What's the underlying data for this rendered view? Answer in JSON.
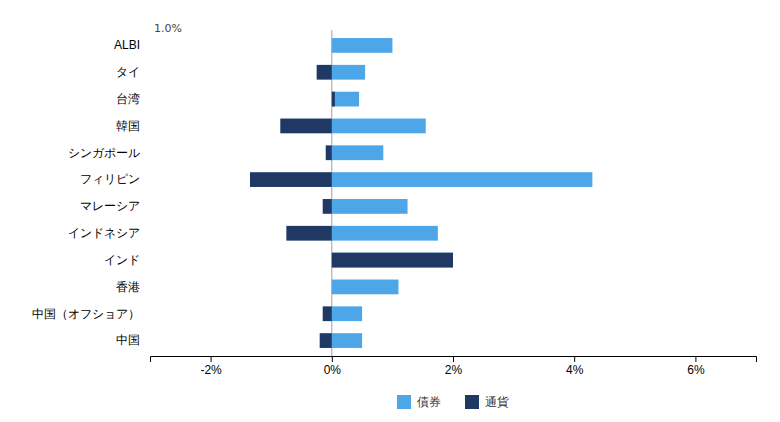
{
  "chart_data": {
    "type": "bar",
    "orientation": "horizontal",
    "stacked": false,
    "categories": [
      "ALBI",
      "タイ",
      "台湾",
      "韓国",
      "シンガポール",
      "フィリピン",
      "マレーシア",
      "インドネシア",
      "インド",
      "香港",
      "中国（オフショア）",
      "中国"
    ],
    "series": [
      {
        "name": "債券",
        "color": "#4da6e8",
        "values": [
          1.0,
          0.55,
          0.45,
          1.55,
          0.85,
          4.3,
          1.25,
          1.75,
          2.0,
          1.1,
          0.5,
          0.5
        ]
      },
      {
        "name": "通貨",
        "color": "#1f3864",
        "values": [
          0.0,
          -0.25,
          0.05,
          -0.85,
          -0.1,
          -1.35,
          -0.15,
          -0.75,
          2.0,
          0.0,
          -0.15,
          -0.2
        ]
      }
    ],
    "annotations": [
      "1.0%"
    ],
    "xlim": [
      -3.0,
      7.0
    ],
    "xticks": [
      {
        "value": -2,
        "label": "-2%"
      },
      {
        "value": 0,
        "label": "0%"
      },
      {
        "value": 2,
        "label": "2%"
      },
      {
        "value": 4,
        "label": "4%"
      },
      {
        "value": 6,
        "label": "6%"
      }
    ],
    "legend": "bottom"
  }
}
